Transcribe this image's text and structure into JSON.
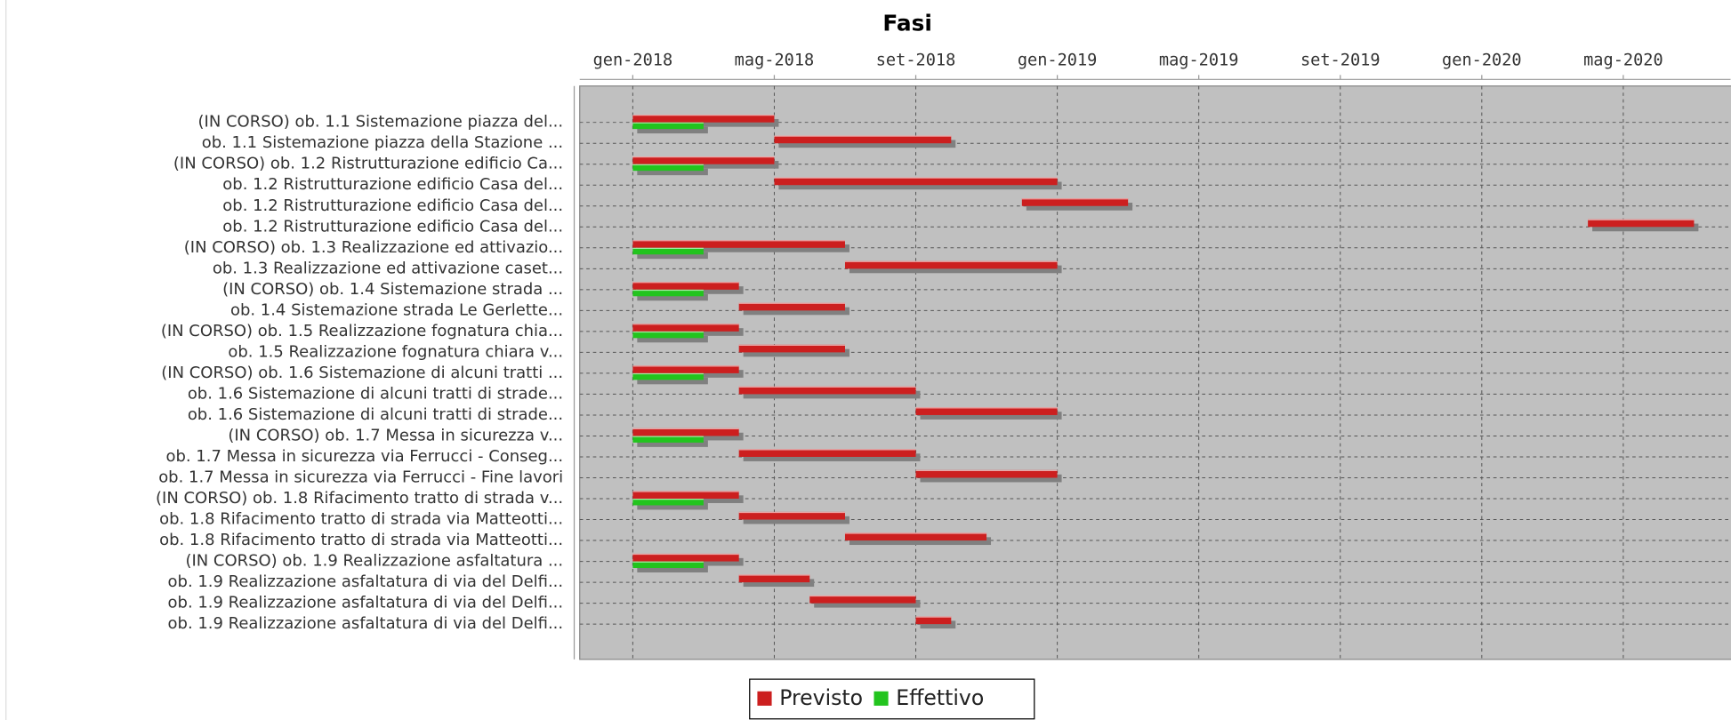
{
  "chart_data": {
    "type": "gantt",
    "title": "Fasi",
    "categories": [
      "(IN CORSO) ob. 1.1 Sistemazione piazza del...",
      "ob. 1.1 Sistemazione piazza della Stazione ...",
      "(IN CORSO) ob. 1.2 Ristrutturazione edificio Ca...",
      "ob. 1.2 Ristrutturazione edificio Casa del...",
      "ob. 1.2 Ristrutturazione edificio Casa del...",
      "ob. 1.2 Ristrutturazione edificio Casa del...",
      "(IN CORSO) ob. 1.3 Realizzazione ed attivazio...",
      "ob. 1.3 Realizzazione ed attivazione caset...",
      "(IN CORSO) ob. 1.4 Sistemazione strada ...",
      "ob. 1.4 Sistemazione strada Le Gerlette...",
      "(IN CORSO) ob. 1.5 Realizzazione fognatura chia...",
      "ob. 1.5 Realizzazione fognatura chiara v...",
      "(IN CORSO) ob. 1.6 Sistemazione di alcuni tratti ...",
      "ob. 1.6 Sistemazione di alcuni tratti di strade...",
      "ob. 1.6 Sistemazione di alcuni tratti di strade...",
      "(IN CORSO) ob. 1.7 Messa in sicurezza v...",
      "ob. 1.7 Messa in sicurezza via Ferrucci - Conseg...",
      "ob. 1.7 Messa in sicurezza via Ferrucci - Fine lavori",
      "(IN CORSO) ob. 1.8 Rifacimento tratto di strada v...",
      "ob. 1.8 Rifacimento tratto di strada via Matteotti...",
      "ob. 1.8 Rifacimento tratto di strada via Matteotti...",
      "(IN CORSO) ob. 1.9 Realizzazione asfaltatura ...",
      "ob. 1.9 Realizzazione asfaltatura di via del Delfi...",
      "ob. 1.9 Realizzazione asfaltatura di via del Delfi...",
      "ob. 1.9 Realizzazione asfaltatura di via del Delfi..."
    ],
    "series": [
      {
        "name": "Previsto",
        "color": "#cc1f1f",
        "values": [
          [
            "2018-01",
            "2018-05"
          ],
          [
            "2018-05",
            "2018-10"
          ],
          [
            "2018-01",
            "2018-05"
          ],
          [
            "2018-05",
            "2019-01"
          ],
          [
            "2018-12",
            "2019-03"
          ],
          [
            "2020-04",
            "2020-07"
          ],
          [
            "2018-01",
            "2018-07"
          ],
          [
            "2018-07",
            "2019-01"
          ],
          [
            "2018-01",
            "2018-04"
          ],
          [
            "2018-04",
            "2018-07"
          ],
          [
            "2018-01",
            "2018-04"
          ],
          [
            "2018-04",
            "2018-07"
          ],
          [
            "2018-01",
            "2018-04"
          ],
          [
            "2018-04",
            "2018-09"
          ],
          [
            "2018-09",
            "2019-01"
          ],
          [
            "2018-01",
            "2018-04"
          ],
          [
            "2018-04",
            "2018-09"
          ],
          [
            "2018-09",
            "2019-01"
          ],
          [
            "2018-01",
            "2018-04"
          ],
          [
            "2018-04",
            "2018-07"
          ],
          [
            "2018-07",
            "2018-11"
          ],
          [
            "2018-01",
            "2018-04"
          ],
          [
            "2018-04",
            "2018-06"
          ],
          [
            "2018-06",
            "2018-09"
          ],
          [
            "2018-09",
            "2018-10"
          ]
        ]
      },
      {
        "name": "Effettivo",
        "color": "#22c41e",
        "values": [
          [
            "2018-01",
            "2018-03"
          ],
          null,
          [
            "2018-01",
            "2018-03"
          ],
          null,
          null,
          null,
          [
            "2018-01",
            "2018-03"
          ],
          null,
          [
            "2018-01",
            "2018-03"
          ],
          null,
          [
            "2018-01",
            "2018-03"
          ],
          null,
          [
            "2018-01",
            "2018-03"
          ],
          null,
          null,
          [
            "2018-01",
            "2018-03"
          ],
          null,
          null,
          [
            "2018-01",
            "2018-03"
          ],
          null,
          null,
          [
            "2018-01",
            "2018-03"
          ],
          null,
          null,
          null
        ]
      }
    ],
    "xlim": [
      "2017-11-16",
      "2020-08-02"
    ],
    "xticks": [
      {
        "value": "2018-01",
        "label": "gen-2018"
      },
      {
        "value": "2018-05",
        "label": "mag-2018"
      },
      {
        "value": "2018-09",
        "label": "set-2018"
      },
      {
        "value": "2019-01",
        "label": "gen-2019"
      },
      {
        "value": "2019-05",
        "label": "mag-2019"
      },
      {
        "value": "2019-09",
        "label": "set-2019"
      },
      {
        "value": "2020-01",
        "label": "gen-2020"
      },
      {
        "value": "2020-05",
        "label": "mag-2020"
      }
    ],
    "grid": true,
    "legend": "bottom"
  }
}
